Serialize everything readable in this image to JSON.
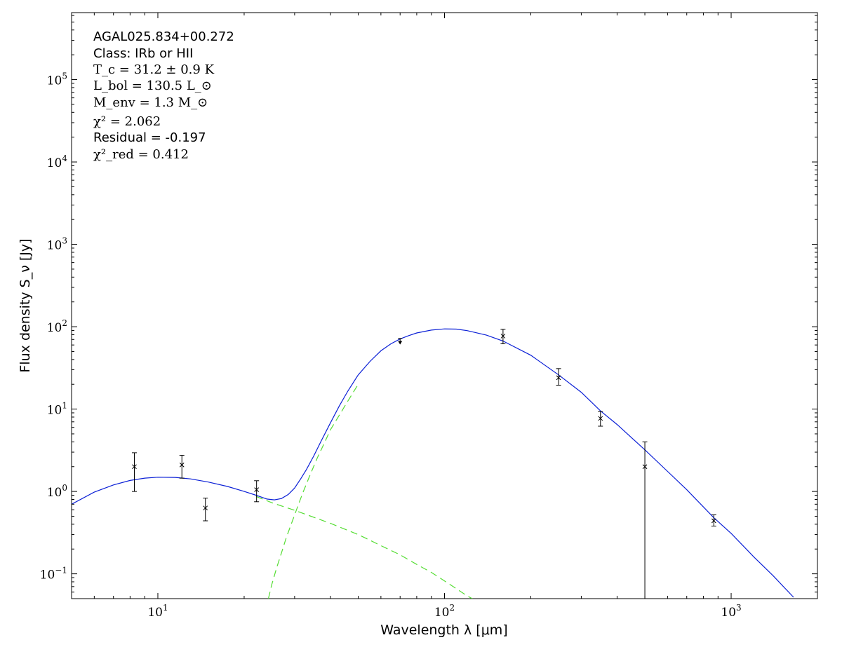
{
  "chart_data": {
    "type": "scatter",
    "xscale": "log",
    "yscale": "log",
    "xlim": [
      5,
      2000
    ],
    "ylim": [
      0.05,
      650000
    ],
    "xlabel": "Wavelength λ [μm]",
    "ylabel": "Flux density S_ν [Jy]",
    "x_ticks": [
      {
        "base": "10",
        "exp": "1",
        "value": 10
      },
      {
        "base": "10",
        "exp": "2",
        "value": 100
      },
      {
        "base": "10",
        "exp": "3",
        "value": 1000
      }
    ],
    "y_ticks": [
      {
        "base": "10",
        "exp": "−1",
        "value": 0.1
      },
      {
        "base": "10",
        "exp": "0",
        "value": 1
      },
      {
        "base": "10",
        "exp": "1",
        "value": 10
      },
      {
        "base": "10",
        "exp": "2",
        "value": 100
      },
      {
        "base": "10",
        "exp": "3",
        "value": 1000
      },
      {
        "base": "10",
        "exp": "4",
        "value": 10000
      },
      {
        "base": "10",
        "exp": "5",
        "value": 100000
      }
    ],
    "annotations": {
      "source": "AGAL025.834+00.272",
      "class_line": "Class: IRb or HII",
      "tc": "T_c = 31.2 ± 0.9 K",
      "lbol": "L_bol = 130.5 L_⊙",
      "menv": "M_env = 1.3 M_⊙",
      "chi2": "χ² = 2.062",
      "residual": "Residual = -0.197",
      "chi2_red": "χ²_red = 0.412"
    },
    "points": [
      {
        "x": 8.28,
        "y": 2.0,
        "lo": 1.0,
        "hi": 2.95
      },
      {
        "x": 12.13,
        "y": 2.1,
        "lo": 1.45,
        "hi": 2.75
      },
      {
        "x": 14.65,
        "y": 0.63,
        "lo": 0.44,
        "hi": 0.83
      },
      {
        "x": 22.1,
        "y": 1.05,
        "lo": 0.75,
        "hi": 1.35
      },
      {
        "x": 70,
        "y": 62,
        "upper_limit": true,
        "top": 72
      },
      {
        "x": 160,
        "y": 77,
        "lo": 62,
        "hi": 93
      },
      {
        "x": 250,
        "y": 24,
        "lo": 19.5,
        "hi": 31
      },
      {
        "x": 350,
        "y": 7.7,
        "lo": 6.2,
        "hi": 9.3
      },
      {
        "x": 500,
        "y": 2.0,
        "lo": 0.05,
        "hi": 4.0
      },
      {
        "x": 870,
        "y": 0.44,
        "lo": 0.38,
        "hi": 0.52
      }
    ],
    "series": [
      {
        "color": "#0a1fd6",
        "style": "solid",
        "x": [
          5,
          6,
          7,
          8,
          9,
          10,
          11.5,
          13,
          15,
          17.5,
          20,
          22,
          24,
          25.5,
          27,
          28.5,
          30,
          31.5,
          33,
          35,
          37,
          40,
          43,
          46,
          50,
          55,
          60,
          65,
          70,
          75,
          80,
          90,
          100,
          110,
          120,
          140,
          160,
          200,
          250,
          300,
          350,
          400,
          500,
          600,
          700,
          870,
          1000,
          1200,
          1400,
          1650
        ],
        "y": [
          0.7,
          0.98,
          1.2,
          1.36,
          1.45,
          1.49,
          1.48,
          1.42,
          1.3,
          1.15,
          1.0,
          0.9,
          0.81,
          0.79,
          0.82,
          0.92,
          1.1,
          1.42,
          1.85,
          2.7,
          4.0,
          6.8,
          11,
          16.5,
          26,
          38,
          51,
          62,
          71,
          78,
          84,
          91,
          94,
          93.5,
          89.5,
          79,
          67,
          45,
          26,
          16,
          9.5,
          6.5,
          3.2,
          1.75,
          1.05,
          0.48,
          0.31,
          0.16,
          0.095,
          0.052
        ]
      },
      {
        "color": "#55dd33",
        "style": "dashed",
        "x": [
          22,
          25,
          30,
          40,
          50,
          60,
          70,
          80,
          90,
          100,
          110,
          120,
          125
        ],
        "y": [
          0.87,
          0.73,
          0.59,
          0.41,
          0.3,
          0.22,
          0.17,
          0.13,
          0.104,
          0.082,
          0.066,
          0.054,
          0.05
        ]
      },
      {
        "color": "#55dd33",
        "style": "dashed",
        "x": [
          24.3,
          25,
          26,
          27,
          28,
          30,
          32,
          34,
          36,
          38,
          40,
          45,
          50
        ],
        "y": [
          0.05,
          0.075,
          0.12,
          0.18,
          0.27,
          0.52,
          0.95,
          1.6,
          2.55,
          3.8,
          5.6,
          11,
          20
        ]
      }
    ]
  }
}
